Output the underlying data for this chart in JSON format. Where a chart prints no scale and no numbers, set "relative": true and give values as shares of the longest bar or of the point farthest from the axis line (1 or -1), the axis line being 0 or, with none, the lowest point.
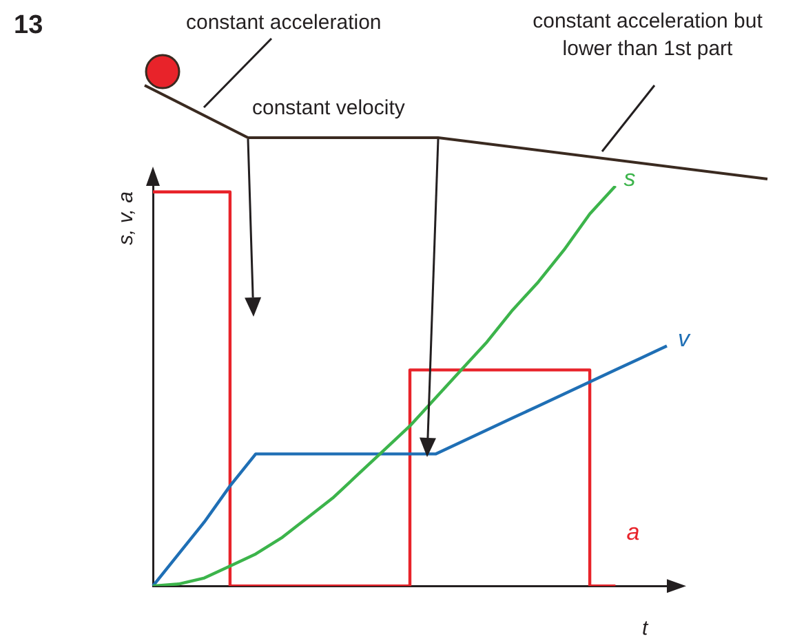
{
  "chart_data": {
    "type": "line",
    "relative": true,
    "xlabel": "t",
    "ylabel": "s, v, a",
    "grid": false,
    "legend": false,
    "marker": "none",
    "annotations": [
      "13",
      "constant acceleration",
      "constant velocity",
      "constant acceleration but lower than 1st part"
    ],
    "categories": [
      null,
      null,
      null,
      null,
      null,
      null,
      null,
      null,
      null,
      null,
      null,
      null,
      null,
      null,
      null,
      null,
      null,
      null,
      null,
      null,
      null
    ],
    "series": [
      {
        "name": "s",
        "color": "#3cb44b",
        "values": [
          0,
          0.005,
          0.02,
          0.05,
          0.08,
          0.12,
          0.17,
          0.22,
          0.28,
          0.34,
          0.4,
          0.47,
          0.54,
          0.61,
          0.69,
          0.76,
          0.84,
          0.93,
          1.0,
          null,
          null
        ]
      },
      {
        "name": "v",
        "color": "#1f6fb5",
        "values": [
          0,
          0.08,
          0.16,
          0.25,
          0.33,
          0.33,
          0.33,
          0.33,
          0.33,
          0.33,
          0.33,
          0.33,
          0.36,
          0.39,
          0.42,
          0.45,
          0.48,
          0.51,
          0.54,
          0.57,
          0.6
        ]
      },
      {
        "name": "a",
        "type": "step",
        "color": "#e8232a",
        "values": [
          0.985,
          0.985,
          0.985,
          0.985,
          0,
          0,
          0,
          0,
          0,
          0,
          0,
          0.54,
          0.54,
          0.54,
          0.54,
          0.54,
          0.54,
          0.54,
          0,
          null,
          null
        ]
      }
    ]
  }
}
